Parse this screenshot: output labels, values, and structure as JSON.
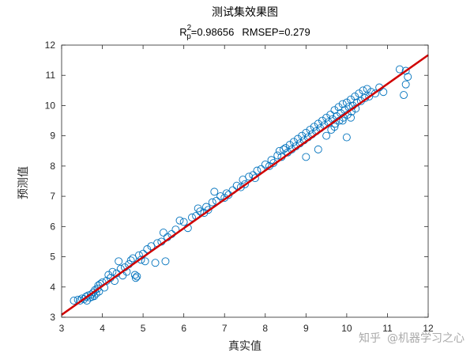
{
  "chart_data": {
    "type": "scatter",
    "title": "测试集效果图",
    "subtitle": {
      "r_symbol": "R",
      "r_sup": "2",
      "r_sub": "p",
      "r_value_text": "=0.98656",
      "rmsep_text": "RMSEP=0.279"
    },
    "xlabel": "真实值",
    "ylabel": "预测值",
    "xlim": [
      3,
      12
    ],
    "ylim": [
      3,
      12
    ],
    "xticks": [
      "3",
      "4",
      "5",
      "6",
      "7",
      "8",
      "9",
      "10",
      "11",
      "12"
    ],
    "yticks": [
      "3",
      "4",
      "5",
      "6",
      "7",
      "8",
      "9",
      "10",
      "11",
      "12"
    ],
    "grid": false,
    "marker_color": "#0072BD",
    "fit_line_color": "#D00000",
    "fit_line": {
      "x": [
        3,
        12
      ],
      "y": [
        3.08,
        11.67
      ]
    },
    "points": [
      [
        3.3,
        3.55
      ],
      [
        3.4,
        3.58
      ],
      [
        3.45,
        3.55
      ],
      [
        3.5,
        3.62
      ],
      [
        3.55,
        3.6
      ],
      [
        3.6,
        3.68
      ],
      [
        3.62,
        3.55
      ],
      [
        3.65,
        3.72
      ],
      [
        3.7,
        3.65
      ],
      [
        3.72,
        3.75
      ],
      [
        3.75,
        3.68
      ],
      [
        3.78,
        3.82
      ],
      [
        3.8,
        3.7
      ],
      [
        3.82,
        3.9
      ],
      [
        3.85,
        3.78
      ],
      [
        3.88,
        3.95
      ],
      [
        3.9,
        4.05
      ],
      [
        3.92,
        3.85
      ],
      [
        3.95,
        4.1
      ],
      [
        4.0,
        4.15
      ],
      [
        4.05,
        3.98
      ],
      [
        4.1,
        4.2
      ],
      [
        4.15,
        4.4
      ],
      [
        4.2,
        4.3
      ],
      [
        4.25,
        4.5
      ],
      [
        4.3,
        4.2
      ],
      [
        4.35,
        4.45
      ],
      [
        4.4,
        4.85
      ],
      [
        4.45,
        4.6
      ],
      [
        4.5,
        4.38
      ],
      [
        4.55,
        4.65
      ],
      [
        4.6,
        4.5
      ],
      [
        4.65,
        4.75
      ],
      [
        4.7,
        4.88
      ],
      [
        4.75,
        4.95
      ],
      [
        4.8,
        4.4
      ],
      [
        4.82,
        4.3
      ],
      [
        4.85,
        4.35
      ],
      [
        4.9,
        5.05
      ],
      [
        4.95,
        4.9
      ],
      [
        5.0,
        5.1
      ],
      [
        5.05,
        4.85
      ],
      [
        5.1,
        5.25
      ],
      [
        5.2,
        5.35
      ],
      [
        5.3,
        4.8
      ],
      [
        5.35,
        5.45
      ],
      [
        5.45,
        5.5
      ],
      [
        5.5,
        5.8
      ],
      [
        5.55,
        4.85
      ],
      [
        5.6,
        5.65
      ],
      [
        5.7,
        5.75
      ],
      [
        5.8,
        5.9
      ],
      [
        5.9,
        6.2
      ],
      [
        6.0,
        6.15
      ],
      [
        6.1,
        5.95
      ],
      [
        6.2,
        6.3
      ],
      [
        6.3,
        6.35
      ],
      [
        6.35,
        6.6
      ],
      [
        6.4,
        6.5
      ],
      [
        6.5,
        6.45
      ],
      [
        6.55,
        6.65
      ],
      [
        6.6,
        6.55
      ],
      [
        6.7,
        6.8
      ],
      [
        6.75,
        7.15
      ],
      [
        6.8,
        6.85
      ],
      [
        6.9,
        7.0
      ],
      [
        7.0,
        6.95
      ],
      [
        7.05,
        7.1
      ],
      [
        7.1,
        7.05
      ],
      [
        7.2,
        7.2
      ],
      [
        7.3,
        7.35
      ],
      [
        7.4,
        7.3
      ],
      [
        7.45,
        7.55
      ],
      [
        7.5,
        7.4
      ],
      [
        7.6,
        7.65
      ],
      [
        7.7,
        7.7
      ],
      [
        7.75,
        7.6
      ],
      [
        7.8,
        7.85
      ],
      [
        7.9,
        7.9
      ],
      [
        8.0,
        8.05
      ],
      [
        8.1,
        8.0
      ],
      [
        8.15,
        8.2
      ],
      [
        8.2,
        8.1
      ],
      [
        8.3,
        8.35
      ],
      [
        8.35,
        8.5
      ],
      [
        8.4,
        8.3
      ],
      [
        8.45,
        8.55
      ],
      [
        8.5,
        8.6
      ],
      [
        8.55,
        8.45
      ],
      [
        8.6,
        8.7
      ],
      [
        8.65,
        8.55
      ],
      [
        8.7,
        8.8
      ],
      [
        8.75,
        8.65
      ],
      [
        8.8,
        8.9
      ],
      [
        8.85,
        8.75
      ],
      [
        8.9,
        9.0
      ],
      [
        8.95,
        8.85
      ],
      [
        9.0,
        8.3
      ],
      [
        9.0,
        9.1
      ],
      [
        9.05,
        8.95
      ],
      [
        9.1,
        9.2
      ],
      [
        9.15,
        9.05
      ],
      [
        9.2,
        9.3
      ],
      [
        9.25,
        9.15
      ],
      [
        9.3,
        9.4
      ],
      [
        9.3,
        8.55
      ],
      [
        9.35,
        9.25
      ],
      [
        9.4,
        9.5
      ],
      [
        9.45,
        9.35
      ],
      [
        9.5,
        9.6
      ],
      [
        9.55,
        9.45
      ],
      [
        9.6,
        9.7
      ],
      [
        9.62,
        9.2
      ],
      [
        9.65,
        9.55
      ],
      [
        9.7,
        9.85
      ],
      [
        9.72,
        9.4
      ],
      [
        9.75,
        9.65
      ],
      [
        9.8,
        9.95
      ],
      [
        9.82,
        9.5
      ],
      [
        9.85,
        9.75
      ],
      [
        9.9,
        10.05
      ],
      [
        9.92,
        9.6
      ],
      [
        9.95,
        9.85
      ],
      [
        10.0,
        10.1
      ],
      [
        10.0,
        8.95
      ],
      [
        10.02,
        9.7
      ],
      [
        10.05,
        9.95
      ],
      [
        10.1,
        10.2
      ],
      [
        10.12,
        9.8
      ],
      [
        10.15,
        10.0
      ],
      [
        10.2,
        10.3
      ],
      [
        10.22,
        9.9
      ],
      [
        10.25,
        10.1
      ],
      [
        10.3,
        10.4
      ],
      [
        10.35,
        10.15
      ],
      [
        10.4,
        10.5
      ],
      [
        10.45,
        10.25
      ],
      [
        10.5,
        10.55
      ],
      [
        10.55,
        10.3
      ],
      [
        10.6,
        10.45
      ],
      [
        10.7,
        10.4
      ],
      [
        10.8,
        10.6
      ],
      [
        10.9,
        10.45
      ],
      [
        11.3,
        11.2
      ],
      [
        11.45,
        11.15
      ],
      [
        11.5,
        10.95
      ],
      [
        11.45,
        10.7
      ],
      [
        11.4,
        10.35
      ],
      [
        9.5,
        9.0
      ],
      [
        9.7,
        9.3
      ],
      [
        9.9,
        9.5
      ],
      [
        10.1,
        9.6
      ]
    ]
  },
  "watermark": {
    "site": "知乎",
    "account": "@机器学习之心"
  }
}
